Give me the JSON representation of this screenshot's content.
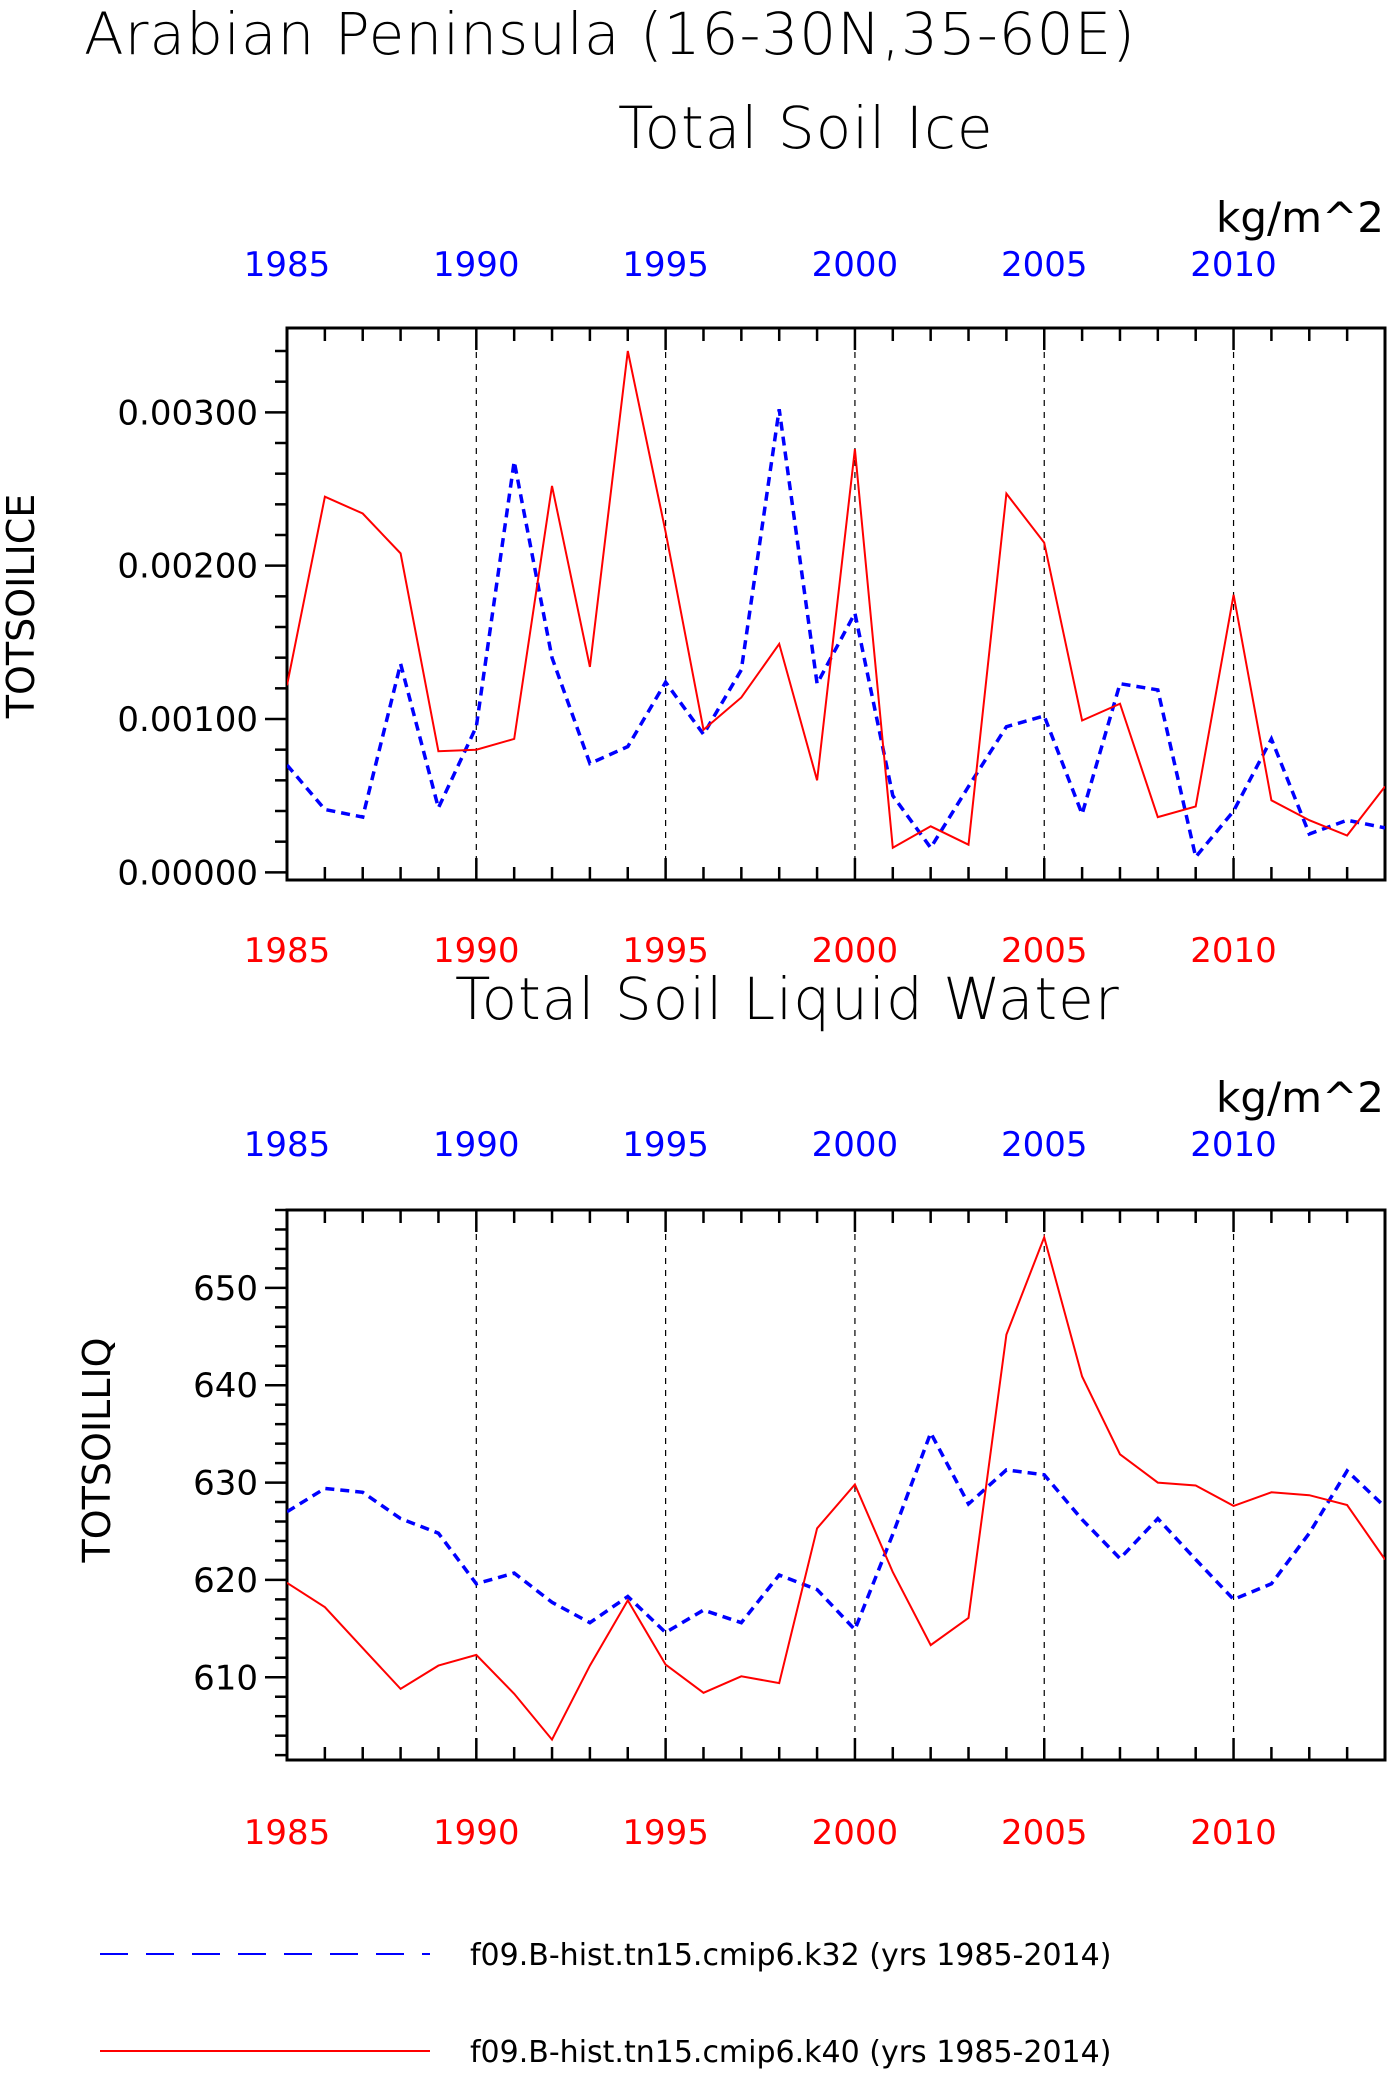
{
  "title": "Arabian Peninsula (16-30N,35-60E)",
  "colors": {
    "series_k32": "#0000ff",
    "series_k40": "#ff0000",
    "axis": "#000000",
    "grid": "#000000"
  },
  "chart_data": [
    {
      "type": "line",
      "title": "Total Soil Ice",
      "units": "kg/m^2",
      "ylabel": "TOTSOILICE",
      "xlabel": "",
      "xlim": [
        1985,
        2014
      ],
      "ylim": [
        -5e-05,
        0.00355
      ],
      "yticks": [
        0.0,
        0.001,
        0.002,
        0.003
      ],
      "ytick_labels": [
        "0.00000",
        "0.00100",
        "0.00200",
        "0.00300"
      ],
      "xticks": [
        1985,
        1990,
        1995,
        2000,
        2005,
        2010
      ],
      "xtick_labels": [
        "1985",
        "1990",
        "1995",
        "2000",
        "2005",
        "2010"
      ],
      "vertical_grid": [
        1990,
        1995,
        2000,
        2005,
        2010
      ],
      "x": [
        1985,
        1986,
        1987,
        1988,
        1989,
        1990,
        1991,
        1992,
        1993,
        1994,
        1995,
        1996,
        1997,
        1998,
        1999,
        2000,
        2001,
        2002,
        2003,
        2004,
        2005,
        2006,
        2007,
        2008,
        2009,
        2010,
        2011,
        2012,
        2013,
        2014
      ],
      "series": [
        {
          "name": "f09.B-hist.tn15.cmip6.k32 (yrs 1985-2014)",
          "style": "dashed",
          "color": "#0000ff",
          "values": [
            0.0007,
            0.00041,
            0.00036,
            0.00136,
            0.00042,
            0.00095,
            0.00268,
            0.0014,
            0.00071,
            0.00082,
            0.00124,
            0.0009,
            0.00132,
            0.00302,
            0.00123,
            0.00169,
            0.0005,
            0.00016,
            0.00056,
            0.00095,
            0.00102,
            0.00038,
            0.00123,
            0.00119,
            0.0001,
            0.0004,
            0.00087,
            0.00025,
            0.00034,
            0.00029
          ]
        },
        {
          "name": "f09.B-hist.tn15.cmip6.k40 (yrs 1985-2014)",
          "style": "solid",
          "color": "#ff0000",
          "values": [
            0.00122,
            0.00245,
            0.00234,
            0.00208,
            0.00079,
            0.0008,
            0.00087,
            0.00252,
            0.00134,
            0.0034,
            0.00222,
            0.00093,
            0.00114,
            0.00149,
            0.0006,
            0.00276,
            0.00016,
            0.0003,
            0.00018,
            0.00247,
            0.00215,
            0.00099,
            0.0011,
            0.00036,
            0.00043,
            0.00181,
            0.00047,
            0.00034,
            0.00024,
            0.00056
          ]
        }
      ]
    },
    {
      "type": "line",
      "title": "Total Soil Liquid Water",
      "units": "kg/m^2",
      "ylabel": "TOTSOILLIQ",
      "xlabel": "",
      "xlim": [
        1985,
        2014
      ],
      "ylim": [
        601.5,
        658
      ],
      "yticks": [
        610,
        620,
        630,
        640,
        650
      ],
      "ytick_labels": [
        "610",
        "620",
        "630",
        "640",
        "650"
      ],
      "xticks": [
        1985,
        1990,
        1995,
        2000,
        2005,
        2010
      ],
      "xtick_labels": [
        "1985",
        "1990",
        "1995",
        "2000",
        "2005",
        "2010"
      ],
      "vertical_grid": [
        1990,
        1995,
        2000,
        2005,
        2010
      ],
      "x": [
        1985,
        1986,
        1987,
        1988,
        1989,
        1990,
        1991,
        1992,
        1993,
        1994,
        1995,
        1996,
        1997,
        1998,
        1999,
        2000,
        2001,
        2002,
        2003,
        2004,
        2005,
        2006,
        2007,
        2008,
        2009,
        2010,
        2011,
        2012,
        2013,
        2014
      ],
      "series": [
        {
          "name": "f09.B-hist.tn15.cmip6.k32 (yrs 1985-2014)",
          "style": "dashed",
          "color": "#0000ff",
          "values": [
            627.0,
            629.4,
            629.0,
            626.3,
            624.8,
            619.6,
            620.7,
            617.7,
            615.6,
            618.3,
            614.6,
            616.9,
            615.6,
            620.5,
            619.0,
            614.9,
            624.7,
            635.1,
            627.8,
            631.3,
            630.8,
            626.2,
            622.2,
            626.3,
            622.1,
            618.0,
            619.6,
            624.8,
            631.2,
            627.5
          ]
        },
        {
          "name": "f09.B-hist.tn15.cmip6.k40 (yrs 1985-2014)",
          "style": "solid",
          "color": "#ff0000",
          "values": [
            619.7,
            617.2,
            613.0,
            608.8,
            611.2,
            612.3,
            608.3,
            603.6,
            611.2,
            617.9,
            611.3,
            608.4,
            610.1,
            609.4,
            625.3,
            629.8,
            620.8,
            613.3,
            616.1,
            645.2,
            655.2,
            640.9,
            632.9,
            630.0,
            629.7,
            627.6,
            629.0,
            628.7,
            627.7,
            622.1
          ]
        }
      ]
    }
  ],
  "legend": {
    "items": [
      {
        "label": "f09.B-hist.tn15.cmip6.k32 (yrs 1985-2014)",
        "style": "dashed",
        "color": "#0000ff"
      },
      {
        "label": "f09.B-hist.tn15.cmip6.k40 (yrs 1985-2014)",
        "style": "solid",
        "color": "#ff0000"
      }
    ]
  }
}
